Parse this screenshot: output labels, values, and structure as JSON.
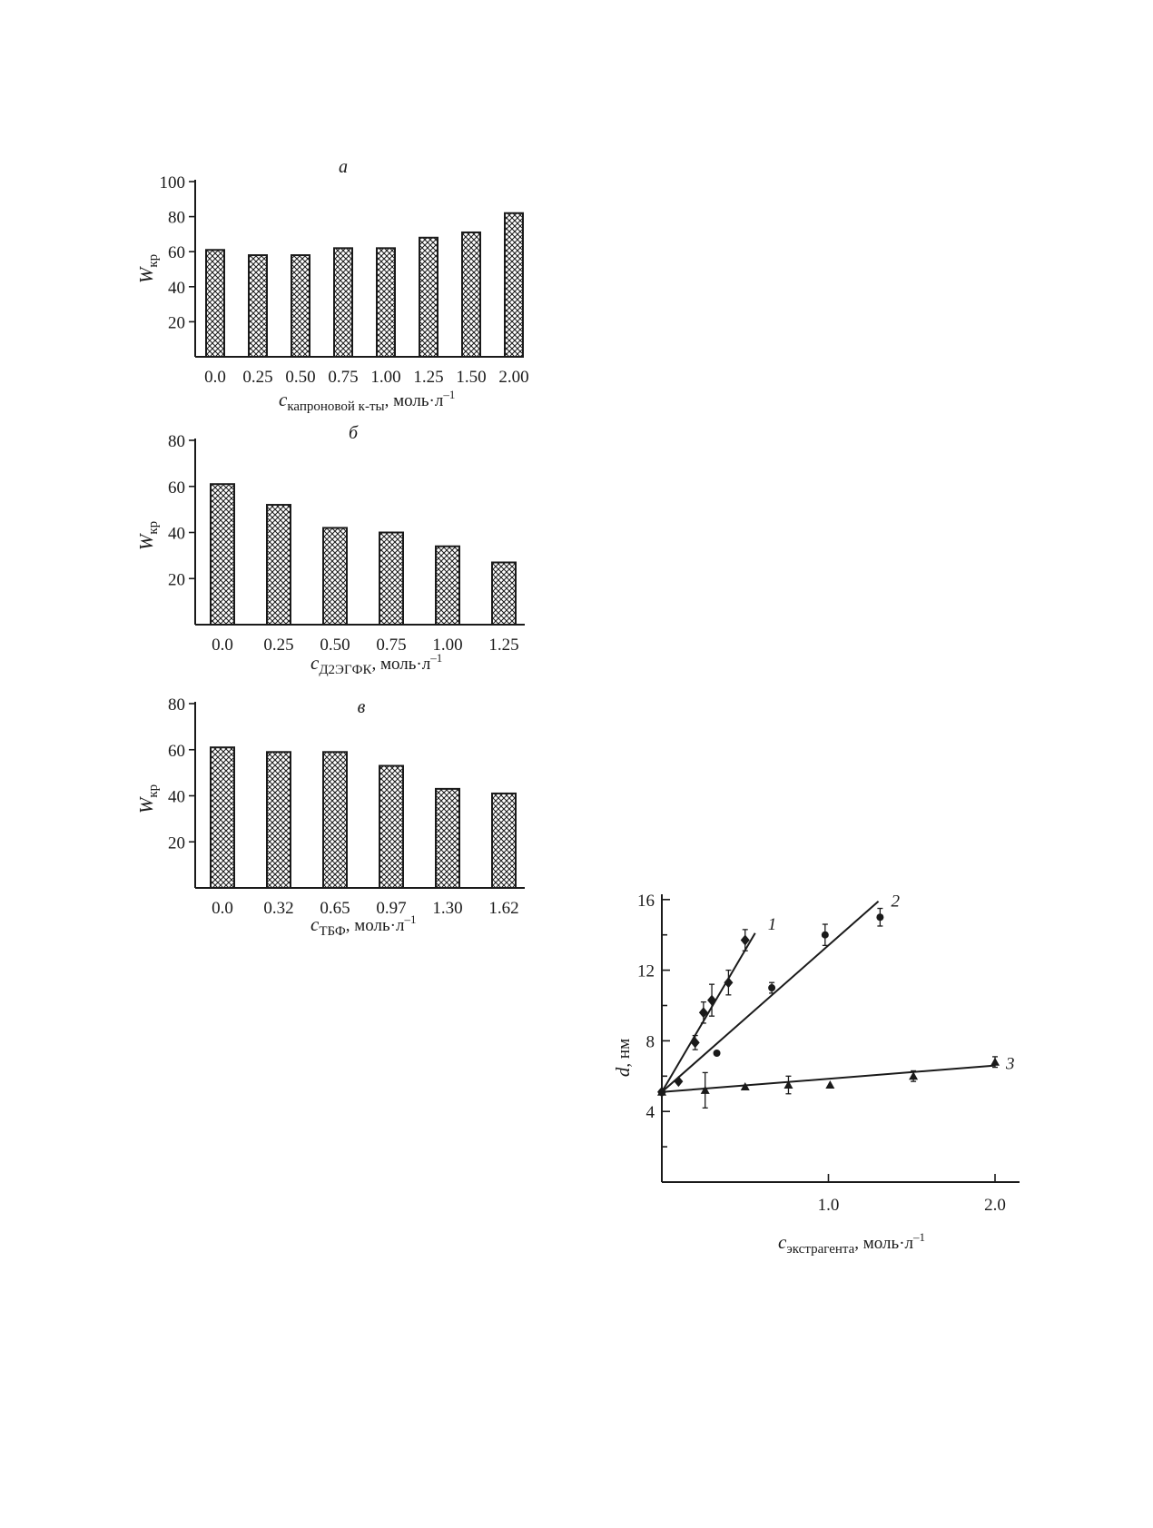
{
  "chart_data": [
    {
      "type": "bar",
      "panel_label": "а",
      "categories": [
        "0.0",
        "0.25",
        "0.50",
        "0.75",
        "1.00",
        "1.25",
        "1.50",
        "2.00"
      ],
      "values": [
        61,
        58,
        58,
        62,
        62,
        68,
        71,
        82
      ],
      "ylabel": "W",
      "ylabel_sub": "кр",
      "xlabel": "c",
      "xlabel_sub": "капроновой к-ты",
      "xlabel_unit": ", моль·л",
      "xlabel_sup": "–1",
      "ylim": [
        0,
        100
      ],
      "yticks": [
        20,
        40,
        60,
        80,
        100
      ],
      "grid": false
    },
    {
      "type": "bar",
      "panel_label": "б",
      "categories": [
        "0.0",
        "0.25",
        "0.50",
        "0.75",
        "1.00",
        "1.25"
      ],
      "values": [
        61,
        52,
        42,
        40,
        34,
        27
      ],
      "ylabel": "W",
      "ylabel_sub": "кр",
      "xlabel": "c",
      "xlabel_sub": "Д2ЭГФК",
      "xlabel_unit": ", моль·л",
      "xlabel_sup": "–1",
      "ylim": [
        0,
        80
      ],
      "yticks": [
        20,
        40,
        60,
        80
      ],
      "grid": false
    },
    {
      "type": "bar",
      "panel_label": "в",
      "categories": [
        "0.0",
        "0.32",
        "0.65",
        "0.97",
        "1.30",
        "1.62"
      ],
      "values": [
        61,
        59,
        59,
        53,
        43,
        41
      ],
      "ylabel": "W",
      "ylabel_sub": "кр",
      "xlabel": "c",
      "xlabel_sub": "ТБФ",
      "xlabel_unit": ", моль·л",
      "xlabel_sup": "–1",
      "ylim": [
        0,
        80
      ],
      "yticks": [
        20,
        40,
        60,
        80
      ],
      "grid": false
    },
    {
      "type": "scatter",
      "ylabel": "d",
      "ylabel_unit": ", нм",
      "xlabel": "c",
      "xlabel_sub": "экстрагента",
      "xlabel_unit": ", моль·л",
      "xlabel_sup": "–1",
      "xlim": [
        0,
        2.15
      ],
      "ylim": [
        0,
        16.5
      ],
      "xticks": [
        1.0,
        2.0
      ],
      "xtick_labels": [
        "1.0",
        "2.0"
      ],
      "yticks": [
        4,
        8,
        12,
        16
      ],
      "ytick_labels": [
        "4",
        "8",
        "12",
        "16"
      ],
      "yminor_ticks": [
        2,
        6,
        10,
        14
      ],
      "grid": false,
      "series": [
        {
          "label": "1",
          "marker": "diamond",
          "x": [
            0.0,
            0.1,
            0.2,
            0.25,
            0.3,
            0.4,
            0.5
          ],
          "y": [
            5.1,
            5.7,
            7.9,
            9.6,
            10.3,
            11.3,
            13.7
          ],
          "yerr": [
            0,
            0,
            0.4,
            0.6,
            0.9,
            0.7,
            0.6
          ],
          "fit": {
            "x0": 0.0,
            "y0": 5.1,
            "x1": 0.56,
            "y1": 14.1
          }
        },
        {
          "label": "2",
          "marker": "circle",
          "x": [
            0.0,
            0.33,
            0.66,
            0.98,
            1.31
          ],
          "y": [
            5.1,
            7.3,
            11.0,
            14.0,
            15.0
          ],
          "yerr": [
            0,
            0,
            0.3,
            0.6,
            0.5
          ],
          "fit": {
            "x0": 0.0,
            "y0": 5.1,
            "x1": 1.3,
            "y1": 15.9
          }
        },
        {
          "label": "3",
          "marker": "triangle",
          "x": [
            0.0,
            0.26,
            0.5,
            0.76,
            1.01,
            1.51,
            2.0
          ],
          "y": [
            5.1,
            5.2,
            5.4,
            5.5,
            5.5,
            6.0,
            6.8
          ],
          "yerr": [
            0,
            1.0,
            0,
            0.5,
            0,
            0.3,
            0.3
          ],
          "fit": {
            "x0": 0.0,
            "y0": 5.1,
            "x1": 2.0,
            "y1": 6.6
          }
        }
      ]
    }
  ]
}
